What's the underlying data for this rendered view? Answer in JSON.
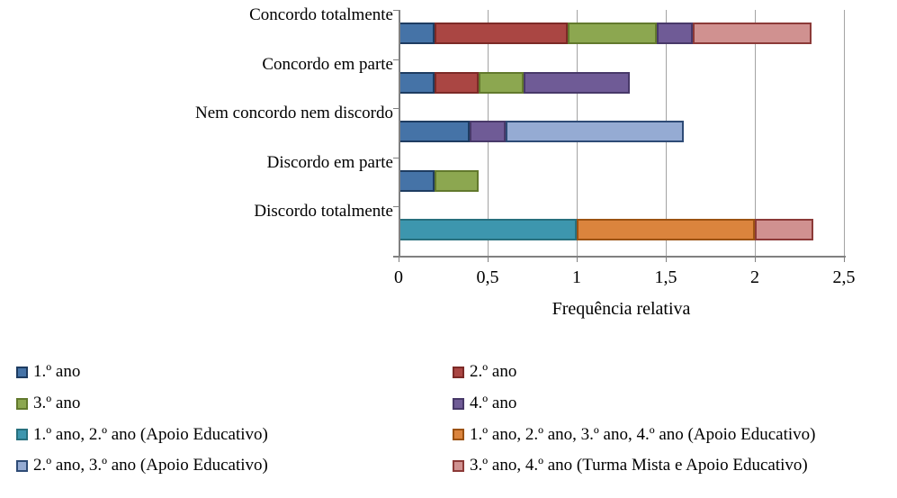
{
  "page": {
    "background": "#ffffff",
    "text_color": "#000000"
  },
  "chart_data": {
    "type": "bar",
    "orientation": "horizontal",
    "stacked": true,
    "title": "",
    "xlabel": "Frequência relativa",
    "ylabel": "",
    "xlim": [
      0,
      2.5
    ],
    "grid": "vertical",
    "legend_position": "bottom-two-columns",
    "categories": [
      "Concordo totalmente",
      "Concordo em parte",
      "Nem concordo nem discordo",
      "Discordo em parte",
      "Discordo totalmente"
    ],
    "x_ticks": [
      {
        "value": 0,
        "label": "0"
      },
      {
        "value": 0.5,
        "label": "0,5"
      },
      {
        "value": 1,
        "label": "1"
      },
      {
        "value": 1.5,
        "label": "1,5"
      },
      {
        "value": 2,
        "label": "2"
      },
      {
        "value": 2.5,
        "label": "2,5"
      }
    ],
    "series": [
      {
        "name": "1.º ano",
        "color": "#4573A7",
        "border_color": "#1E3C61",
        "values": [
          0.2,
          0.2,
          0.4,
          0.2,
          0
        ]
      },
      {
        "name": "2.º ano",
        "color": "#AA4643",
        "border_color": "#7C2A27",
        "values": [
          0.75,
          0.25,
          0,
          0,
          0
        ]
      },
      {
        "name": "3.º ano",
        "color": "#8CA750",
        "border_color": "#62792D",
        "values": [
          0.5,
          0.25,
          0,
          0.25,
          0
        ]
      },
      {
        "name": "4.º ano",
        "color": "#6F5B96",
        "border_color": "#483969",
        "values": [
          0.2,
          0.6,
          0.2,
          0,
          0
        ]
      },
      {
        "name": "1.º ano, 2.º ano (Apoio Educativo)",
        "color": "#3D96AE",
        "border_color": "#27707E",
        "values": [
          0,
          0,
          0,
          0,
          1.0
        ]
      },
      {
        "name": "1.º ano, 2.º ano, 3.º ano, 4.º ano (Apoio Educativo)",
        "color": "#DB843D",
        "border_color": "#9C5212",
        "values": [
          0,
          0,
          0,
          0,
          1.0
        ]
      },
      {
        "name": "2.º ano, 3.º ano (Apoio Educativo)",
        "color": "#95ABD3",
        "border_color": "#2E4B76",
        "values": [
          0,
          0,
          1.0,
          0,
          0
        ]
      },
      {
        "name": "3.º ano, 4.º ano (Turma Mista e Apoio Educativo)",
        "color": "#D09190",
        "border_color": "#8C3A38",
        "values": [
          0.67,
          0,
          0,
          0,
          0.33
        ]
      }
    ],
    "legend_columns": [
      [
        0,
        2,
        4,
        6
      ],
      [
        1,
        3,
        5,
        7
      ]
    ],
    "axis_color": "#808080",
    "gridline_color": "#A3A3A3"
  }
}
